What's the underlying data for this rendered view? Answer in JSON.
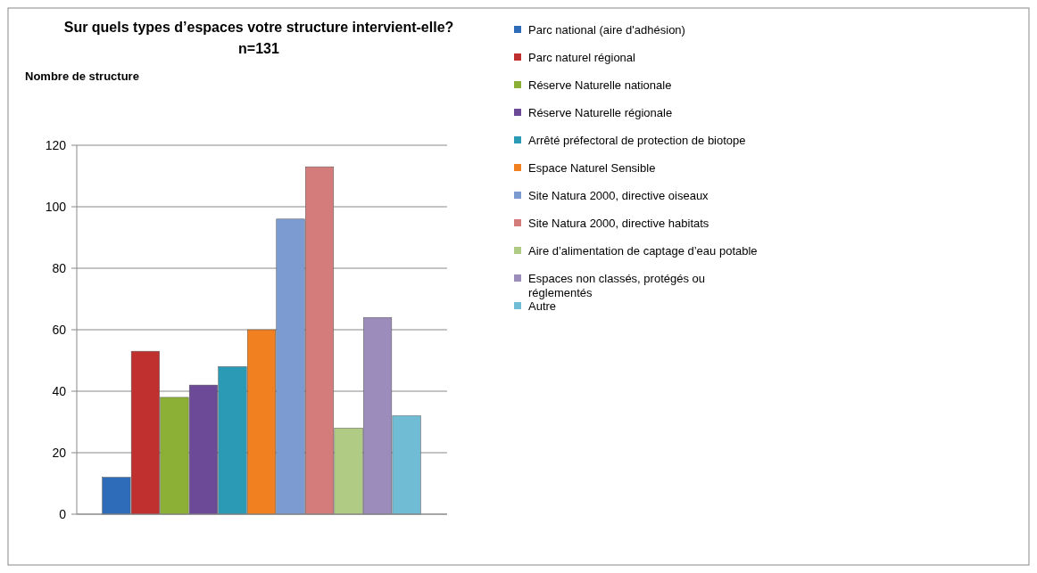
{
  "chart_data": {
    "type": "bar",
    "title": "Sur quels types d’espaces votre structure intervient-elle?",
    "subtitle": "n=131",
    "ylabel": "Nombre de structure",
    "categories": [
      null
    ],
    "series": [
      {
        "name": "Parc national (aire d'adhésion)",
        "color": "#2e6bb8",
        "values": [
          12
        ]
      },
      {
        "name": "Parc naturel régional",
        "color": "#c0302e",
        "values": [
          53
        ]
      },
      {
        "name": "Réserve Naturelle nationale",
        "color": "#8cb035",
        "values": [
          38
        ]
      },
      {
        "name": "Réserve Naturelle régionale",
        "color": "#6c4a98",
        "values": [
          42
        ]
      },
      {
        "name": "Arrêté préfectoral de protection de biotope",
        "color": "#2a9ab5",
        "values": [
          48
        ]
      },
      {
        "name": "Espace Naturel Sensible",
        "color": "#f08020",
        "values": [
          60
        ]
      },
      {
        "name": "Site Natura 2000, directive oiseaux",
        "color": "#7c9bd0",
        "values": [
          96
        ]
      },
      {
        "name": "Site Natura 2000, directive habitats",
        "color": "#d47c7c",
        "values": [
          113
        ]
      },
      {
        "name": "Aire d’alimentation de captage d’eau potable",
        "color": "#b0cc84",
        "values": [
          28
        ]
      },
      {
        "name": "Espaces non classés, protégés ou réglementés",
        "color": "#9c8cbc",
        "values": [
          64
        ]
      },
      {
        "name": "Autre",
        "color": "#70bcd4",
        "values": [
          32
        ]
      }
    ],
    "ylim": [
      0,
      120
    ],
    "yticks": [
      0,
      20,
      40,
      60,
      80,
      100,
      120
    ],
    "grid": "y",
    "legend": "right"
  }
}
